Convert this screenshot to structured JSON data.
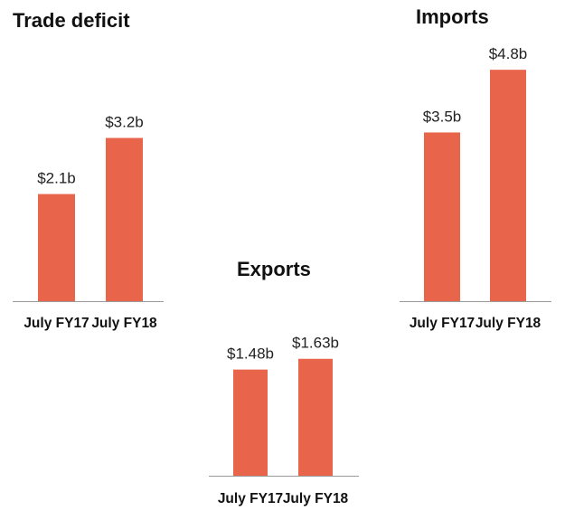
{
  "colors": {
    "bar": "#e8644a",
    "baseline": "#9a9a9a"
  },
  "chart_data": [
    {
      "type": "bar",
      "title": "Trade deficit",
      "categories": [
        "July FY17",
        "July FY18"
      ],
      "values": [
        2.1,
        3.2
      ],
      "value_labels": [
        "$2.1b",
        "$3.2b"
      ],
      "ylim": [
        0,
        4.8
      ],
      "grid": false
    },
    {
      "type": "bar",
      "title": "Imports",
      "categories": [
        "July FY17",
        "July FY18"
      ],
      "values": [
        3.5,
        4.8
      ],
      "value_labels": [
        "$3.5b",
        "$4.8b"
      ],
      "ylim": [
        0,
        4.8
      ],
      "grid": false
    },
    {
      "type": "bar",
      "title": "Exports",
      "categories": [
        "July FY17",
        "July FY18"
      ],
      "values": [
        1.48,
        1.63
      ],
      "value_labels": [
        "$1.48b",
        "$1.63b"
      ],
      "ylim": [
        0,
        1.7
      ],
      "grid": false
    }
  ]
}
